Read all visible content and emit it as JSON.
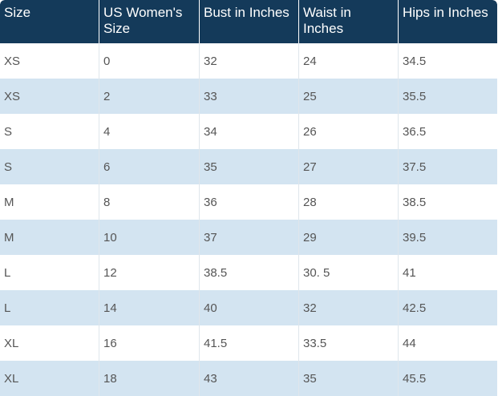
{
  "table": {
    "headers": [
      "Size",
      "US Women's Size",
      "Bust in Inches",
      "Waist in Inches",
      "Hips in Inches"
    ],
    "rows": [
      [
        "XS",
        "0",
        "32",
        "24",
        "34.5"
      ],
      [
        "XS",
        "2",
        "33",
        "25",
        "35.5"
      ],
      [
        "S",
        "4",
        "34",
        "26",
        "36.5"
      ],
      [
        "S",
        "6",
        "35",
        "27",
        "37.5"
      ],
      [
        "M",
        "8",
        "36",
        "28",
        "38.5"
      ],
      [
        "M",
        "10",
        "37",
        "29",
        "39.5"
      ],
      [
        "L",
        "12",
        "38.5",
        "30. 5",
        "41"
      ],
      [
        "L",
        "14",
        "40",
        "32",
        "42.5"
      ],
      [
        "XL",
        "16",
        "41.5",
        "33.5",
        "44"
      ],
      [
        "XL",
        "18",
        "43",
        "35",
        "45.5"
      ]
    ]
  },
  "colors": {
    "header_bg": "#143a5a",
    "header_text": "#ffffff",
    "row_alt_bg": "#d3e4f1",
    "row_bg": "#ffffff",
    "cell_text": "#555555"
  }
}
